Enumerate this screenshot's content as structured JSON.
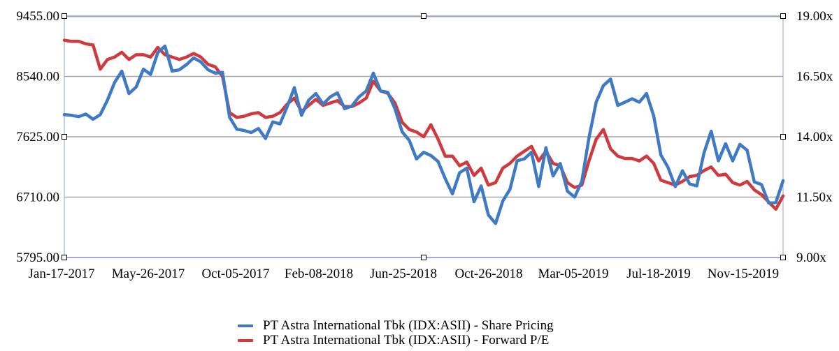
{
  "chart_data": {
    "type": "line",
    "title": "",
    "xlabel": "",
    "x_ticks": [
      "Jan-17-2017",
      "May-26-2017",
      "Oct-05-2017",
      "Feb-08-2018",
      "Jun-25-2018",
      "Oct-26-2018",
      "Mar-05-2019",
      "Jul-18-2019",
      "Nov-15-2019"
    ],
    "left_axis": {
      "label": "Share Price",
      "ticks": [
        "9455.00",
        "8540.00",
        "7625.00",
        "6710.00",
        "5795.00"
      ],
      "range": [
        5795,
        9455
      ]
    },
    "right_axis": {
      "label": "Forward P/E",
      "ticks": [
        "19.00x",
        "16.50x",
        "14.00x",
        "11.50x",
        "9.00x"
      ],
      "range": [
        9,
        19
      ]
    },
    "grid": true,
    "legend_position": "bottom",
    "x_progress": [
      0,
      0.01,
      0.02,
      0.03,
      0.04,
      0.05,
      0.06,
      0.07,
      0.08,
      0.09,
      0.1,
      0.11,
      0.12,
      0.13,
      0.14,
      0.15,
      0.16,
      0.17,
      0.18,
      0.19,
      0.2,
      0.21,
      0.22,
      0.23,
      0.24,
      0.25,
      0.26,
      0.27,
      0.28,
      0.29,
      0.3,
      0.31,
      0.32,
      0.33,
      0.34,
      0.35,
      0.36,
      0.37,
      0.38,
      0.39,
      0.4,
      0.41,
      0.42,
      0.43,
      0.44,
      0.45,
      0.46,
      0.47,
      0.48,
      0.49,
      0.5,
      0.51,
      0.52,
      0.53,
      0.54,
      0.55,
      0.56,
      0.57,
      0.58,
      0.59,
      0.6,
      0.61,
      0.62,
      0.63,
      0.64,
      0.65,
      0.66,
      0.67,
      0.68,
      0.69,
      0.7,
      0.71,
      0.72,
      0.73,
      0.74,
      0.75,
      0.76,
      0.77,
      0.78,
      0.79,
      0.8,
      0.81,
      0.82,
      0.83,
      0.84,
      0.85,
      0.86,
      0.87,
      0.88,
      0.89,
      0.9,
      0.91,
      0.92,
      0.93,
      0.94,
      0.95,
      0.96,
      0.97,
      0.98,
      0.99,
      1.0
    ],
    "series": [
      {
        "name": "PT Astra International Tbk (IDX:ASII) - Share Pricing",
        "axis": "left",
        "color": "#3f7bc4",
        "values": [
          7960,
          7950,
          7930,
          7970,
          7890,
          7960,
          8180,
          8450,
          8620,
          8280,
          8380,
          8650,
          8570,
          8900,
          9000,
          8620,
          8640,
          8720,
          8820,
          8760,
          8640,
          8590,
          8600,
          7920,
          7740,
          7720,
          7690,
          7750,
          7600,
          7850,
          7820,
          8080,
          8370,
          7950,
          8180,
          8280,
          8120,
          8230,
          8290,
          8050,
          8090,
          8230,
          8320,
          8590,
          8320,
          8300,
          8050,
          7700,
          7570,
          7290,
          7390,
          7340,
          7250,
          6990,
          6760,
          7080,
          7150,
          6640,
          6880,
          6440,
          6310,
          6650,
          6830,
          7260,
          7290,
          7390,
          6870,
          7460,
          7030,
          7220,
          6800,
          6710,
          6950,
          7610,
          8150,
          8400,
          8500,
          8100,
          8150,
          8200,
          8150,
          8280,
          7940,
          7350,
          7160,
          6870,
          7110,
          6910,
          6880,
          7380,
          7710,
          7260,
          7520,
          7260,
          7510,
          7420,
          6940,
          6900,
          6620,
          6630,
          6960
        ]
      },
      {
        "name": "PT Astra International Tbk (IDX:ASII) - Forward P/E",
        "axis": "right",
        "color": "#d03a3e",
        "values": [
          18.0,
          17.95,
          17.95,
          17.85,
          17.8,
          16.8,
          17.2,
          17.3,
          17.5,
          17.2,
          17.4,
          17.4,
          17.3,
          17.7,
          17.4,
          17.3,
          17.2,
          17.3,
          17.45,
          17.3,
          17.0,
          16.9,
          16.5,
          15.0,
          14.8,
          14.85,
          14.95,
          15.0,
          14.8,
          14.85,
          15.0,
          15.35,
          15.6,
          15.05,
          15.3,
          15.55,
          15.3,
          15.4,
          15.5,
          15.25,
          15.25,
          15.4,
          15.6,
          16.3,
          15.9,
          15.8,
          15.4,
          14.6,
          14.3,
          14.2,
          14.0,
          14.5,
          13.9,
          13.2,
          13.2,
          12.8,
          12.95,
          12.4,
          12.7,
          12.0,
          12.1,
          12.7,
          12.9,
          13.2,
          13.4,
          13.6,
          13.0,
          13.4,
          12.9,
          12.8,
          12.1,
          11.9,
          12.0,
          13.0,
          13.9,
          14.3,
          13.5,
          13.2,
          13.1,
          13.1,
          13.0,
          13.2,
          12.9,
          12.2,
          12.1,
          12.0,
          12.15,
          12.35,
          12.4,
          12.6,
          12.75,
          12.4,
          12.45,
          12.1,
          12.0,
          12.15,
          11.8,
          11.6,
          11.3,
          11.0,
          11.55
        ]
      }
    ]
  },
  "legend": {
    "items": [
      {
        "label": "PT Astra International Tbk (IDX:ASII) - Share Pricing",
        "color": "#3f7bc4"
      },
      {
        "label": "PT Astra International Tbk (IDX:ASII) - Forward P/E",
        "color": "#d03a3e"
      }
    ]
  },
  "colors": {
    "gridline": "#a6a6a6",
    "axis_line": "#8e9ae6",
    "marker_border": "#000000"
  }
}
